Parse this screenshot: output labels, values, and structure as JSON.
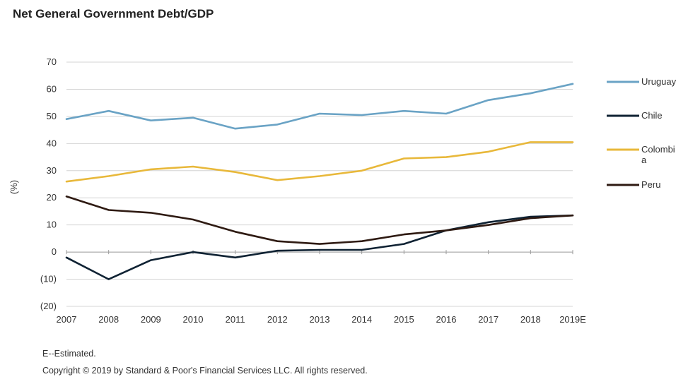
{
  "chart_data": {
    "type": "line",
    "title": "Net General Government Debt/GDP",
    "ylabel": "(%)",
    "xlabel": "",
    "categories": [
      "2007",
      "2008",
      "2009",
      "2010",
      "2011",
      "2012",
      "2013",
      "2014",
      "2015",
      "2016",
      "2017",
      "2018",
      "2019E"
    ],
    "ylim": [
      -20,
      70
    ],
    "yticks": [
      -20,
      -10,
      0,
      10,
      20,
      30,
      40,
      50,
      60,
      70
    ],
    "ytick_labels": [
      "(20)",
      "(10)",
      "0",
      "10",
      "20",
      "30",
      "40",
      "50",
      "60",
      "70"
    ],
    "grid": true,
    "legend_position": "right",
    "series": [
      {
        "name": "Uruguay",
        "color": "#6aa3c5",
        "values": [
          49,
          52,
          48.5,
          49.5,
          45.5,
          47,
          51,
          50.5,
          52,
          51,
          56,
          58.5,
          62
        ]
      },
      {
        "name": "Chile",
        "color": "#0f2233",
        "values": [
          -2,
          -10,
          -3,
          0,
          -2,
          0.5,
          0.8,
          0.8,
          3,
          8,
          11,
          13,
          13.5
        ]
      },
      {
        "name": "Colombia",
        "color": "#e8b83a",
        "values": [
          26,
          28,
          30.5,
          31.5,
          29.5,
          26.5,
          28,
          30,
          34.5,
          35,
          37,
          40.5,
          40.5
        ]
      },
      {
        "name": "Peru",
        "color": "#2e1a12",
        "values": [
          20.5,
          15.5,
          14.5,
          12,
          7.5,
          4,
          3,
          4,
          6.5,
          8,
          10,
          12.5,
          13.5
        ]
      }
    ]
  },
  "footnotes": {
    "estimated": "E--Estimated.",
    "copyright": "Copyright © 2019 by Standard & Poor's Financial Services LLC. All rights reserved."
  }
}
